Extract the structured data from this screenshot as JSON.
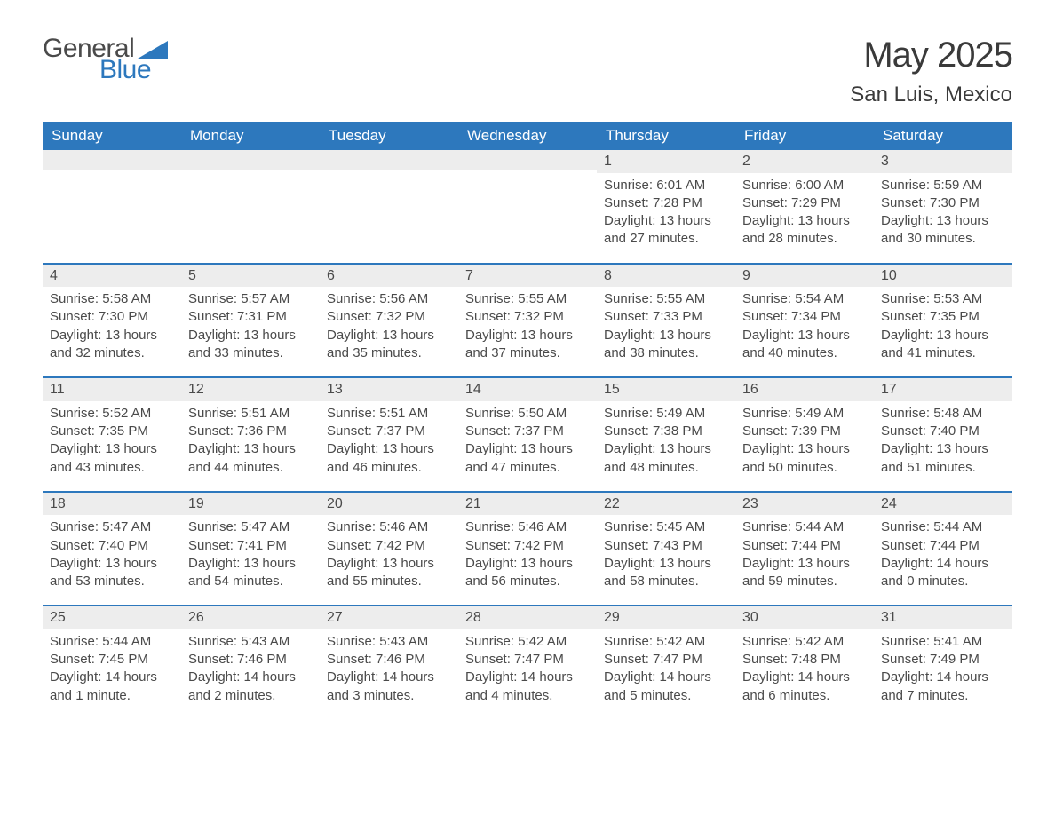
{
  "brand": {
    "name_part1": "General",
    "name_part2": "Blue",
    "color_text": "#4a4a4a",
    "color_accent": "#2d78bd"
  },
  "title": "May 2025",
  "location": "San Luis, Mexico",
  "colors": {
    "header_bg": "#2d78bd",
    "header_text": "#ffffff",
    "daynum_bg": "#ededed",
    "body_text": "#4a4a4a",
    "row_divider": "#2d78bd",
    "page_bg": "#ffffff"
  },
  "fonts": {
    "title_size_pt": 30,
    "location_size_pt": 18,
    "header_size_pt": 13,
    "body_size_pt": 11
  },
  "day_headers": [
    "Sunday",
    "Monday",
    "Tuesday",
    "Wednesday",
    "Thursday",
    "Friday",
    "Saturday"
  ],
  "weeks": [
    [
      {
        "empty": true
      },
      {
        "empty": true
      },
      {
        "empty": true
      },
      {
        "empty": true
      },
      {
        "day": "1",
        "sunrise": "Sunrise: 6:01 AM",
        "sunset": "Sunset: 7:28 PM",
        "daylight1": "Daylight: 13 hours",
        "daylight2": "and 27 minutes."
      },
      {
        "day": "2",
        "sunrise": "Sunrise: 6:00 AM",
        "sunset": "Sunset: 7:29 PM",
        "daylight1": "Daylight: 13 hours",
        "daylight2": "and 28 minutes."
      },
      {
        "day": "3",
        "sunrise": "Sunrise: 5:59 AM",
        "sunset": "Sunset: 7:30 PM",
        "daylight1": "Daylight: 13 hours",
        "daylight2": "and 30 minutes."
      }
    ],
    [
      {
        "day": "4",
        "sunrise": "Sunrise: 5:58 AM",
        "sunset": "Sunset: 7:30 PM",
        "daylight1": "Daylight: 13 hours",
        "daylight2": "and 32 minutes."
      },
      {
        "day": "5",
        "sunrise": "Sunrise: 5:57 AM",
        "sunset": "Sunset: 7:31 PM",
        "daylight1": "Daylight: 13 hours",
        "daylight2": "and 33 minutes."
      },
      {
        "day": "6",
        "sunrise": "Sunrise: 5:56 AM",
        "sunset": "Sunset: 7:32 PM",
        "daylight1": "Daylight: 13 hours",
        "daylight2": "and 35 minutes."
      },
      {
        "day": "7",
        "sunrise": "Sunrise: 5:55 AM",
        "sunset": "Sunset: 7:32 PM",
        "daylight1": "Daylight: 13 hours",
        "daylight2": "and 37 minutes."
      },
      {
        "day": "8",
        "sunrise": "Sunrise: 5:55 AM",
        "sunset": "Sunset: 7:33 PM",
        "daylight1": "Daylight: 13 hours",
        "daylight2": "and 38 minutes."
      },
      {
        "day": "9",
        "sunrise": "Sunrise: 5:54 AM",
        "sunset": "Sunset: 7:34 PM",
        "daylight1": "Daylight: 13 hours",
        "daylight2": "and 40 minutes."
      },
      {
        "day": "10",
        "sunrise": "Sunrise: 5:53 AM",
        "sunset": "Sunset: 7:35 PM",
        "daylight1": "Daylight: 13 hours",
        "daylight2": "and 41 minutes."
      }
    ],
    [
      {
        "day": "11",
        "sunrise": "Sunrise: 5:52 AM",
        "sunset": "Sunset: 7:35 PM",
        "daylight1": "Daylight: 13 hours",
        "daylight2": "and 43 minutes."
      },
      {
        "day": "12",
        "sunrise": "Sunrise: 5:51 AM",
        "sunset": "Sunset: 7:36 PM",
        "daylight1": "Daylight: 13 hours",
        "daylight2": "and 44 minutes."
      },
      {
        "day": "13",
        "sunrise": "Sunrise: 5:51 AM",
        "sunset": "Sunset: 7:37 PM",
        "daylight1": "Daylight: 13 hours",
        "daylight2": "and 46 minutes."
      },
      {
        "day": "14",
        "sunrise": "Sunrise: 5:50 AM",
        "sunset": "Sunset: 7:37 PM",
        "daylight1": "Daylight: 13 hours",
        "daylight2": "and 47 minutes."
      },
      {
        "day": "15",
        "sunrise": "Sunrise: 5:49 AM",
        "sunset": "Sunset: 7:38 PM",
        "daylight1": "Daylight: 13 hours",
        "daylight2": "and 48 minutes."
      },
      {
        "day": "16",
        "sunrise": "Sunrise: 5:49 AM",
        "sunset": "Sunset: 7:39 PM",
        "daylight1": "Daylight: 13 hours",
        "daylight2": "and 50 minutes."
      },
      {
        "day": "17",
        "sunrise": "Sunrise: 5:48 AM",
        "sunset": "Sunset: 7:40 PM",
        "daylight1": "Daylight: 13 hours",
        "daylight2": "and 51 minutes."
      }
    ],
    [
      {
        "day": "18",
        "sunrise": "Sunrise: 5:47 AM",
        "sunset": "Sunset: 7:40 PM",
        "daylight1": "Daylight: 13 hours",
        "daylight2": "and 53 minutes."
      },
      {
        "day": "19",
        "sunrise": "Sunrise: 5:47 AM",
        "sunset": "Sunset: 7:41 PM",
        "daylight1": "Daylight: 13 hours",
        "daylight2": "and 54 minutes."
      },
      {
        "day": "20",
        "sunrise": "Sunrise: 5:46 AM",
        "sunset": "Sunset: 7:42 PM",
        "daylight1": "Daylight: 13 hours",
        "daylight2": "and 55 minutes."
      },
      {
        "day": "21",
        "sunrise": "Sunrise: 5:46 AM",
        "sunset": "Sunset: 7:42 PM",
        "daylight1": "Daylight: 13 hours",
        "daylight2": "and 56 minutes."
      },
      {
        "day": "22",
        "sunrise": "Sunrise: 5:45 AM",
        "sunset": "Sunset: 7:43 PM",
        "daylight1": "Daylight: 13 hours",
        "daylight2": "and 58 minutes."
      },
      {
        "day": "23",
        "sunrise": "Sunrise: 5:44 AM",
        "sunset": "Sunset: 7:44 PM",
        "daylight1": "Daylight: 13 hours",
        "daylight2": "and 59 minutes."
      },
      {
        "day": "24",
        "sunrise": "Sunrise: 5:44 AM",
        "sunset": "Sunset: 7:44 PM",
        "daylight1": "Daylight: 14 hours",
        "daylight2": "and 0 minutes."
      }
    ],
    [
      {
        "day": "25",
        "sunrise": "Sunrise: 5:44 AM",
        "sunset": "Sunset: 7:45 PM",
        "daylight1": "Daylight: 14 hours",
        "daylight2": "and 1 minute."
      },
      {
        "day": "26",
        "sunrise": "Sunrise: 5:43 AM",
        "sunset": "Sunset: 7:46 PM",
        "daylight1": "Daylight: 14 hours",
        "daylight2": "and 2 minutes."
      },
      {
        "day": "27",
        "sunrise": "Sunrise: 5:43 AM",
        "sunset": "Sunset: 7:46 PM",
        "daylight1": "Daylight: 14 hours",
        "daylight2": "and 3 minutes."
      },
      {
        "day": "28",
        "sunrise": "Sunrise: 5:42 AM",
        "sunset": "Sunset: 7:47 PM",
        "daylight1": "Daylight: 14 hours",
        "daylight2": "and 4 minutes."
      },
      {
        "day": "29",
        "sunrise": "Sunrise: 5:42 AM",
        "sunset": "Sunset: 7:47 PM",
        "daylight1": "Daylight: 14 hours",
        "daylight2": "and 5 minutes."
      },
      {
        "day": "30",
        "sunrise": "Sunrise: 5:42 AM",
        "sunset": "Sunset: 7:48 PM",
        "daylight1": "Daylight: 14 hours",
        "daylight2": "and 6 minutes."
      },
      {
        "day": "31",
        "sunrise": "Sunrise: 5:41 AM",
        "sunset": "Sunset: 7:49 PM",
        "daylight1": "Daylight: 14 hours",
        "daylight2": "and 7 minutes."
      }
    ]
  ]
}
